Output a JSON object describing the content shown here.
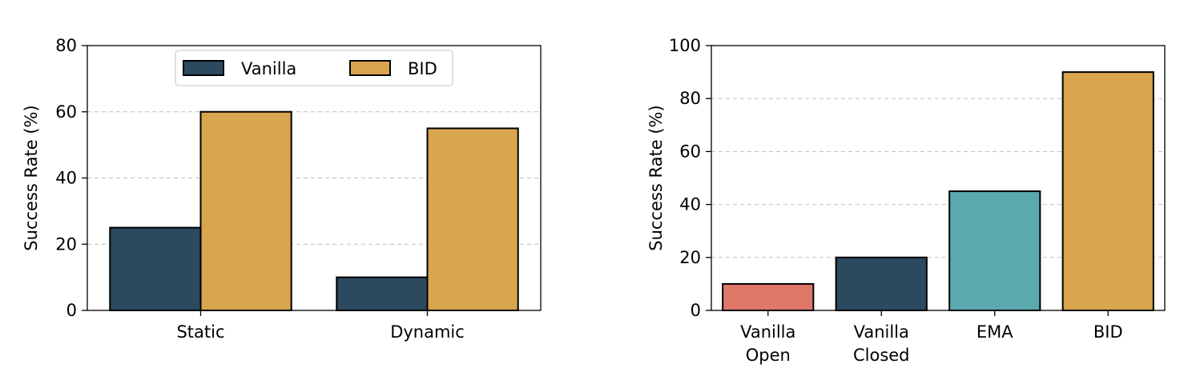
{
  "chart_data": [
    {
      "type": "bar",
      "categories": [
        "Static",
        "Dynamic"
      ],
      "series": [
        {
          "name": "Vanilla",
          "values": [
            25,
            10
          ],
          "color": "#2b4a60"
        },
        {
          "name": "BID",
          "values": [
            60,
            55
          ],
          "color": "#d9a54e"
        }
      ],
      "ylabel": "Success Rate (%)",
      "xlabel": "",
      "ylim": [
        0,
        80
      ],
      "yticks": [
        0,
        20,
        40,
        60,
        80
      ],
      "grid": "y-dashed",
      "legend": {
        "placement": "top-center",
        "ncol": 2
      }
    },
    {
      "type": "bar",
      "categories": [
        [
          "Vanilla",
          "Open"
        ],
        [
          "Vanilla",
          "Closed"
        ],
        [
          "EMA"
        ],
        [
          "BID"
        ]
      ],
      "values": [
        10,
        20,
        45,
        90
      ],
      "colors": [
        "#de786a",
        "#2b4a60",
        "#5aa9ae",
        "#d9a54e"
      ],
      "ylabel": "Success Rate (%)",
      "xlabel": "",
      "ylim": [
        0,
        100
      ],
      "yticks": [
        0,
        20,
        40,
        60,
        80,
        100
      ],
      "grid": "y-dashed"
    }
  ]
}
